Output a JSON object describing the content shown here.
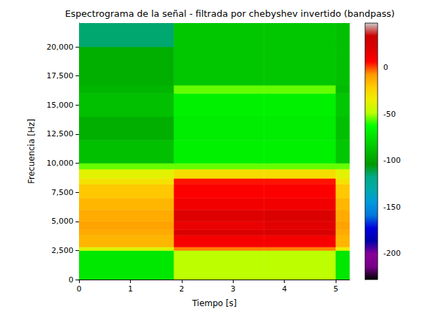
{
  "chart_data": {
    "type": "heatmap",
    "title": "Espectrograma de la señal - filtrada por chebyshev invertido (bandpass)",
    "x_label": "Tiempo [s]",
    "y_label": "Frecuencia [Hz]",
    "xlim": [
      0,
      5.27
    ],
    "xticks": [
      0,
      1,
      2,
      3,
      4,
      5
    ],
    "ylim": [
      0,
      22050
    ],
    "yticks": [
      0,
      2500,
      5000,
      7500,
      10000,
      12500,
      15000,
      17500,
      20000
    ],
    "time_edges": [
      0,
      1.85,
      3.6,
      5.0,
      5.27
    ],
    "freq_edges": [
      0,
      2500,
      2800,
      3800,
      4300,
      5000,
      6000,
      7000,
      8200,
      8700,
      9500,
      10000,
      12000,
      14000,
      16000,
      16700,
      20000,
      22050
    ],
    "cells": [
      [
        -72,
        -48,
        -48,
        -72
      ],
      [
        -40,
        -5,
        -5,
        -35
      ],
      [
        -15,
        10,
        10,
        -15
      ],
      [
        -12,
        22,
        24,
        -12
      ],
      [
        -10,
        15,
        18,
        -10
      ],
      [
        -12,
        20,
        22,
        -12
      ],
      [
        -15,
        12,
        12,
        -15
      ],
      [
        -20,
        8,
        8,
        -20
      ],
      [
        -30,
        5,
        5,
        -30
      ],
      [
        -38,
        -28,
        -28,
        -38
      ],
      [
        -55,
        -55,
        -55,
        -55
      ],
      [
        -88,
        -68,
        -68,
        -85
      ],
      [
        -95,
        -70,
        -70,
        -88
      ],
      [
        -88,
        -68,
        -68,
        -85
      ],
      [
        -92,
        -55,
        -55,
        -90
      ],
      [
        -95,
        -85,
        -85,
        -88
      ],
      [
        -115,
        -85,
        -85,
        -88
      ]
    ],
    "colorbar_range": [
      -228,
      48
    ],
    "colorbar_ticks": [
      -200,
      -150,
      -100,
      -50,
      0
    ]
  }
}
